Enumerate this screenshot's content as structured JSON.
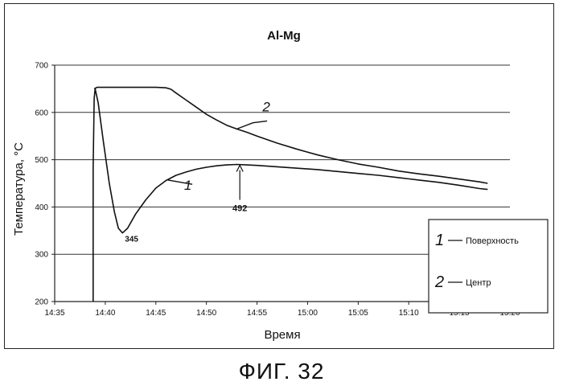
{
  "figure_caption": "ФИГ. 32",
  "chart_data": {
    "type": "line",
    "title": "Al-Mg",
    "xlabel": "Время",
    "ylabel": "Температура, °C",
    "x_ticks": [
      "14:35",
      "14:40",
      "14:45",
      "14:50",
      "14:55",
      "15:00",
      "15:05",
      "15:10",
      "15:15",
      "15:20"
    ],
    "xlim": [
      0,
      45
    ],
    "ylim": [
      200,
      700
    ],
    "y_ticks": [
      200,
      300,
      400,
      500,
      600,
      700
    ],
    "grid": true,
    "legend_position": "bottom-right",
    "series": [
      {
        "name": "Поверхность",
        "mark": "1",
        "color": "#111111",
        "points": [
          [
            3.8,
            200
          ],
          [
            3.8,
            480
          ],
          [
            3.9,
            630
          ],
          [
            4.0,
            650
          ],
          [
            4.3,
            620
          ],
          [
            4.8,
            540
          ],
          [
            5.4,
            450
          ],
          [
            5.9,
            390
          ],
          [
            6.3,
            355
          ],
          [
            6.7,
            345
          ],
          [
            7.2,
            355
          ],
          [
            8.0,
            385
          ],
          [
            9.0,
            415
          ],
          [
            10.0,
            440
          ],
          [
            11.0,
            456
          ],
          [
            12.0,
            467
          ],
          [
            13.0,
            474
          ],
          [
            14.0,
            480
          ],
          [
            15.0,
            484
          ],
          [
            16.0,
            487
          ],
          [
            17.0,
            489
          ],
          [
            18.0,
            490
          ],
          [
            19.0,
            489
          ],
          [
            20.0,
            488
          ],
          [
            22.0,
            485
          ],
          [
            24.0,
            482
          ],
          [
            26.0,
            479
          ],
          [
            28.0,
            475
          ],
          [
            30.0,
            471
          ],
          [
            32.0,
            467
          ],
          [
            34.0,
            462
          ],
          [
            36.0,
            457
          ],
          [
            38.0,
            452
          ],
          [
            40.0,
            446
          ],
          [
            42.0,
            439
          ],
          [
            42.8,
            437
          ]
        ]
      },
      {
        "name": "Центр",
        "mark": "2",
        "color": "#111111",
        "points": [
          [
            3.9,
            650
          ],
          [
            4.2,
            653
          ],
          [
            6.0,
            653
          ],
          [
            8.0,
            653
          ],
          [
            10.0,
            653
          ],
          [
            11.0,
            652
          ],
          [
            11.5,
            649
          ],
          [
            12.0,
            641
          ],
          [
            13.0,
            626
          ],
          [
            14.0,
            611
          ],
          [
            15.0,
            596
          ],
          [
            16.0,
            584
          ],
          [
            17.0,
            573
          ],
          [
            18.0,
            565
          ],
          [
            19.0,
            558
          ],
          [
            20.0,
            550
          ],
          [
            22.0,
            535
          ],
          [
            24.0,
            522
          ],
          [
            26.0,
            510
          ],
          [
            28.0,
            500
          ],
          [
            30.0,
            491
          ],
          [
            32.0,
            484
          ],
          [
            34.0,
            476
          ],
          [
            36.0,
            470
          ],
          [
            38.0,
            465
          ],
          [
            40.0,
            459
          ],
          [
            42.0,
            453
          ],
          [
            42.8,
            450
          ]
        ]
      }
    ],
    "annotations": [
      {
        "text": "345",
        "x": 6.7,
        "y": 345,
        "type": "label"
      },
      {
        "text": "492",
        "x": 18.3,
        "y": 490,
        "type": "arrow"
      }
    ]
  }
}
